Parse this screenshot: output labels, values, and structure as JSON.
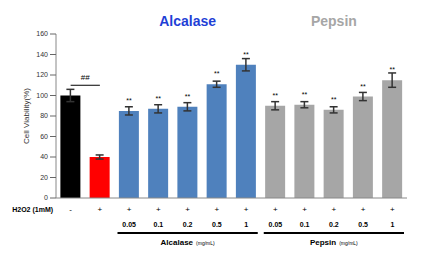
{
  "chart_data": {
    "type": "bar",
    "ylabel": "Cell Viability(%)",
    "categories": [
      null,
      null,
      "0.05",
      "0.1",
      "0.2",
      "0.5",
      "1",
      "0.05",
      "0.1",
      "0.2",
      "0.5",
      "1"
    ],
    "values": [
      100,
      40,
      85,
      87,
      89,
      111,
      130,
      90,
      91,
      86,
      99,
      115
    ],
    "errors": [
      6,
      2,
      4,
      4,
      4,
      3,
      6,
      4,
      3,
      3,
      4,
      7
    ],
    "colors": [
      "#000000",
      "#ff0000",
      "#4f81bd",
      "#4f81bd",
      "#4f81bd",
      "#4f81bd",
      "#4f81bd",
      "#a6a6a6",
      "#a6a6a6",
      "#a6a6a6",
      "#a6a6a6",
      "#a6a6a6"
    ],
    "significance": [
      null,
      null,
      "**",
      "**",
      "**",
      "**",
      "**",
      "**",
      "**",
      "**",
      "**",
      "**"
    ],
    "bracket_label": "##",
    "row_label": "H2O2 (1mM)",
    "row_signs": [
      "-",
      "+",
      "+",
      "+",
      "+",
      "+",
      "+",
      "+",
      "+",
      "+",
      "+",
      "+"
    ],
    "group": [
      null,
      null,
      "Alcalase",
      "Alcalase",
      "Alcalase",
      "Alcalase",
      "Alcalase",
      "Pepsin",
      "Pepsin",
      "Pepsin",
      "Pepsin",
      "Pepsin"
    ],
    "group_unit": "(mg/mL)",
    "group_colors": {
      "Alcalase": "#1f3fd6",
      "Pepsin": "#a6a6a6"
    },
    "ylim": [
      0,
      160
    ],
    "yticks": [
      0,
      20,
      40,
      60,
      80,
      100,
      120,
      140,
      160
    ],
    "grid": false
  }
}
